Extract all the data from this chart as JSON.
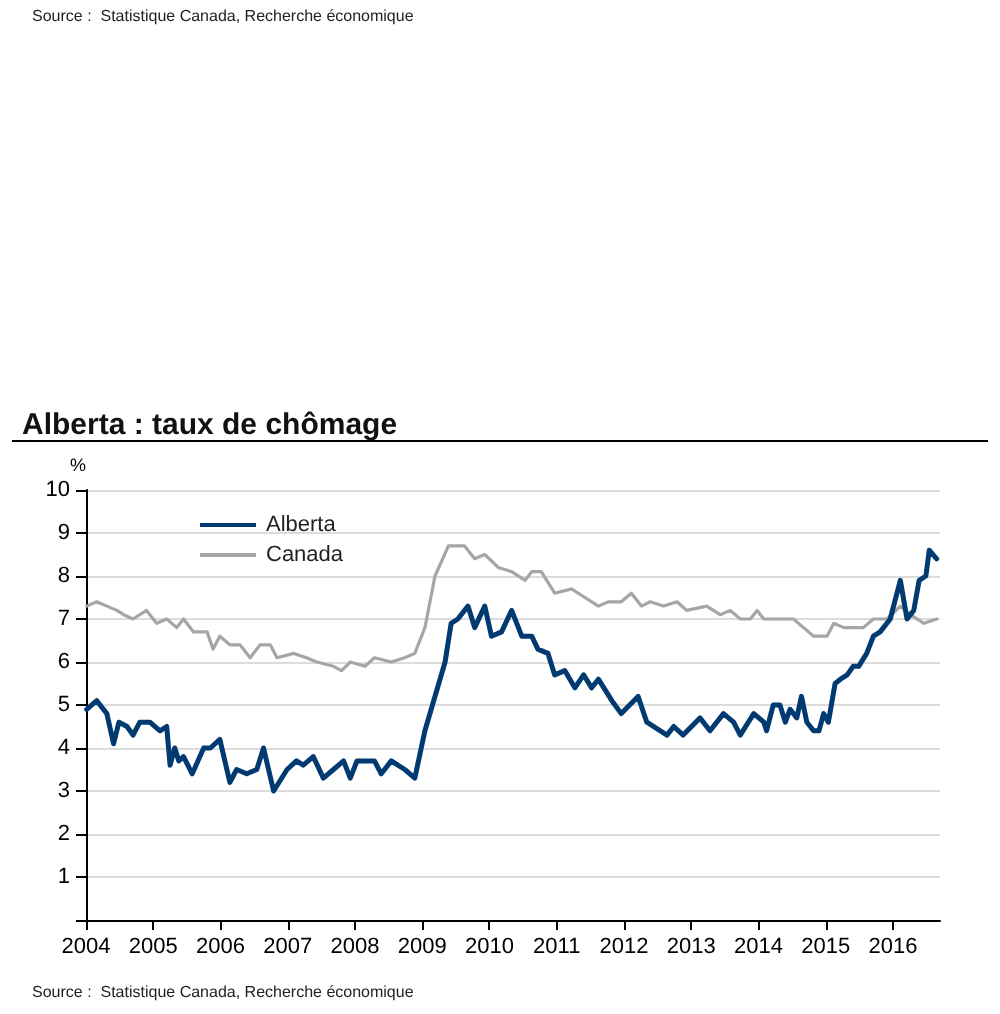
{
  "chart_data": {
    "type": "line",
    "title": "Alberta : taux de chômage",
    "ylabel": "%",
    "annotations": [
      "Source :  Statistique Canada, Recherche économique",
      "Source :  Statistique Canada, Recherche économique"
    ],
    "xlim": [
      2004,
      2016.7
    ],
    "xticks": [
      2004,
      2005,
      2006,
      2007,
      2008,
      2009,
      2010,
      2011,
      2012,
      2013,
      2014,
      2015,
      2016
    ],
    "ylim": [
      0,
      10
    ],
    "yticks": [
      {
        "value": 0,
        "label": null
      },
      1,
      2,
      3,
      4,
      5,
      6,
      7,
      8,
      9,
      10
    ],
    "grid": "y",
    "legend": "top left",
    "marker": "none",
    "line_style": "solid",
    "series": [
      {
        "name": "Alberta",
        "color": "#003a70",
        "x": [
          2004.01,
          2004.16,
          2004.31,
          2004.41,
          2004.49,
          2004.61,
          2004.7,
          2004.8,
          2004.95,
          2005.1,
          2005.2,
          2005.25,
          2005.32,
          2005.38,
          2005.45,
          2005.58,
          2005.75,
          2005.85,
          2005.99,
          2006.14,
          2006.24,
          2006.39,
          2006.54,
          2006.64,
          2006.79,
          2006.99,
          2007.13,
          2007.23,
          2007.38,
          2007.53,
          2007.68,
          2007.83,
          2007.93,
          2008.03,
          2008.29,
          2008.39,
          2008.54,
          2008.74,
          2008.89,
          2009.04,
          2009.34,
          2009.43,
          2009.53,
          2009.68,
          2009.78,
          2009.93,
          2010.03,
          2010.18,
          2010.33,
          2010.48,
          2010.63,
          2010.72,
          2010.87,
          2010.97,
          2011.12,
          2011.27,
          2011.4,
          2011.52,
          2011.62,
          2011.82,
          2011.96,
          2012.21,
          2012.34,
          2012.64,
          2012.74,
          2012.88,
          2013.13,
          2013.28,
          2013.48,
          2013.63,
          2013.73,
          2013.93,
          2014.08,
          2014.12,
          2014.22,
          2014.32,
          2014.4,
          2014.47,
          2014.57,
          2014.64,
          2014.72,
          2014.82,
          2014.9,
          2014.97,
          2015.04,
          2015.14,
          2015.22,
          2015.32,
          2015.41,
          2015.49,
          2015.61,
          2015.71,
          2015.81,
          2015.96,
          2016.11,
          2016.21,
          2016.31,
          2016.39,
          2016.49,
          2016.54,
          2016.65
        ],
        "values": [
          4.9,
          5.1,
          4.8,
          4.1,
          4.6,
          4.5,
          4.3,
          4.6,
          4.6,
          4.4,
          4.5,
          3.6,
          4.0,
          3.7,
          3.8,
          3.4,
          4.0,
          4.0,
          4.2,
          3.2,
          3.5,
          3.4,
          3.5,
          4.0,
          3.0,
          3.5,
          3.7,
          3.6,
          3.8,
          3.3,
          3.5,
          3.7,
          3.3,
          3.7,
          3.7,
          3.4,
          3.7,
          3.5,
          3.3,
          4.4,
          6.0,
          6.9,
          7.0,
          7.3,
          6.8,
          7.3,
          6.6,
          6.7,
          7.2,
          6.6,
          6.6,
          6.3,
          6.2,
          5.7,
          5.8,
          5.4,
          5.7,
          5.4,
          5.6,
          5.1,
          4.8,
          5.2,
          4.6,
          4.3,
          4.5,
          4.3,
          4.7,
          4.4,
          4.8,
          4.6,
          4.3,
          4.8,
          4.6,
          4.4,
          5.0,
          5.0,
          4.6,
          4.9,
          4.7,
          5.2,
          4.6,
          4.4,
          4.4,
          4.8,
          4.6,
          5.5,
          5.6,
          5.7,
          5.9,
          5.9,
          6.2,
          6.6,
          6.7,
          7.0,
          7.9,
          7.0,
          7.2,
          7.9,
          8.0,
          8.6,
          8.4
        ]
      },
      {
        "name": "Canada",
        "color": "#a6a6a6",
        "x": [
          2004.01,
          2004.16,
          2004.31,
          2004.46,
          2004.56,
          2004.7,
          2004.9,
          2005.05,
          2005.2,
          2005.35,
          2005.45,
          2005.6,
          2005.8,
          2005.89,
          2005.99,
          2006.14,
          2006.29,
          2006.44,
          2006.59,
          2006.74,
          2006.84,
          2007.09,
          2007.28,
          2007.43,
          2007.68,
          2007.8,
          2007.93,
          2008.15,
          2008.29,
          2008.54,
          2008.74,
          2008.89,
          2009.04,
          2009.19,
          2009.39,
          2009.63,
          2009.78,
          2009.93,
          2010.13,
          2010.33,
          2010.53,
          2010.63,
          2010.77,
          2010.97,
          2011.22,
          2011.42,
          2011.62,
          2011.77,
          2011.96,
          2012.11,
          2012.26,
          2012.39,
          2012.59,
          2012.79,
          2012.93,
          2013.23,
          2013.43,
          2013.58,
          2013.73,
          2013.88,
          2013.98,
          2014.08,
          2014.52,
          2014.67,
          2014.82,
          2015.02,
          2015.12,
          2015.27,
          2015.56,
          2015.71,
          2015.91,
          2016.11,
          2016.26,
          2016.46,
          2016.65
        ],
        "values": [
          7.3,
          7.4,
          7.3,
          7.2,
          7.1,
          7.0,
          7.2,
          6.9,
          7.0,
          6.8,
          7.0,
          6.7,
          6.7,
          6.3,
          6.6,
          6.4,
          6.4,
          6.1,
          6.4,
          6.4,
          6.1,
          6.2,
          6.1,
          6.0,
          5.9,
          5.8,
          6.0,
          5.9,
          6.1,
          6.0,
          6.1,
          6.2,
          6.8,
          8.0,
          8.7,
          8.7,
          8.4,
          8.5,
          8.2,
          8.1,
          7.9,
          8.1,
          8.1,
          7.6,
          7.7,
          7.5,
          7.3,
          7.4,
          7.4,
          7.6,
          7.3,
          7.4,
          7.3,
          7.4,
          7.2,
          7.3,
          7.1,
          7.2,
          7.0,
          7.0,
          7.2,
          7.0,
          7.0,
          6.8,
          6.6,
          6.6,
          6.9,
          6.8,
          6.8,
          7.0,
          7.0,
          7.3,
          7.1,
          6.9,
          7.0
        ]
      }
    ]
  }
}
